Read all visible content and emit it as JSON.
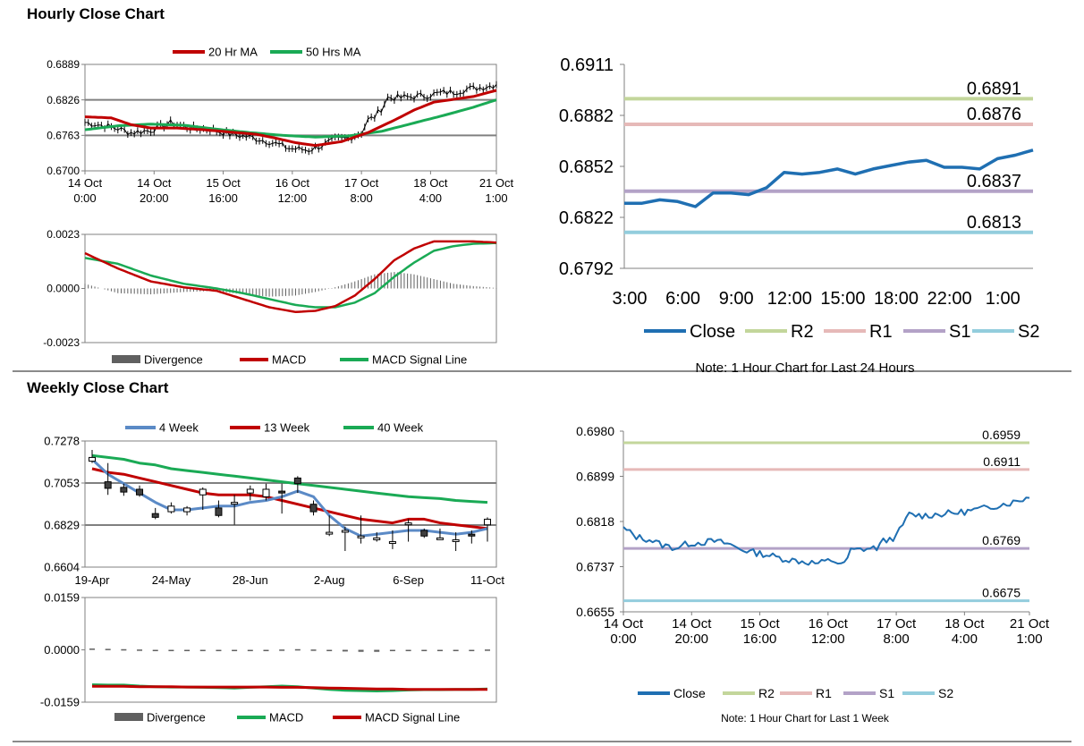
{
  "sections": [
    {
      "title": "Hourly Close Chart"
    },
    {
      "title": "Weekly Close Chart"
    }
  ],
  "colors": {
    "ma20": "#c00000",
    "ma50": "#1aaa55",
    "close_black": "#000000",
    "macd": "#c00000",
    "signal": "#1aaa55",
    "divergence": "#606060",
    "close_blue": "#1f6fb2",
    "r2": "#c3d69b",
    "r1": "#e6b9b8",
    "s1": "#b3a2c7",
    "s2": "#93cddd",
    "w4": "#5b8ac6",
    "w13": "#c00000",
    "w40": "#1aaa55",
    "gridline": "#808080"
  },
  "chart_data": [
    {
      "id": "hourly_price",
      "type": "line",
      "y_ticks": [
        "0.6889",
        "0.6826",
        "0.6763",
        "0.6700"
      ],
      "ylim": [
        0.67,
        0.6889
      ],
      "x_tick_labels": [
        [
          "14 Oct",
          "0:00"
        ],
        [
          "14 Oct",
          "20:00"
        ],
        [
          "15 Oct",
          "16:00"
        ],
        [
          "16 Oct",
          "12:00"
        ],
        [
          "17 Oct",
          "8:00"
        ],
        [
          "18 Oct",
          "4:00"
        ],
        [
          "21 Oct",
          "1:00"
        ]
      ],
      "legend": [
        "20 Hr MA",
        "50 Hrs MA"
      ],
      "x_count": 126,
      "close_keypoints": [
        [
          0,
          0.6786
        ],
        [
          6,
          0.678
        ],
        [
          10,
          0.6775
        ],
        [
          14,
          0.6768
        ],
        [
          20,
          0.6772
        ],
        [
          26,
          0.6785
        ],
        [
          32,
          0.6776
        ],
        [
          38,
          0.6774
        ],
        [
          44,
          0.6765
        ],
        [
          50,
          0.676
        ],
        [
          56,
          0.6752
        ],
        [
          62,
          0.674
        ],
        [
          68,
          0.6737
        ],
        [
          72,
          0.6745
        ],
        [
          76,
          0.6755
        ],
        [
          80,
          0.6758
        ],
        [
          84,
          0.6768
        ],
        [
          86,
          0.679
        ],
        [
          88,
          0.6796
        ],
        [
          90,
          0.681
        ],
        [
          92,
          0.683
        ],
        [
          96,
          0.683
        ],
        [
          100,
          0.6832
        ],
        [
          104,
          0.6834
        ],
        [
          108,
          0.6838
        ],
        [
          112,
          0.684
        ],
        [
          116,
          0.6845
        ],
        [
          120,
          0.6848
        ],
        [
          124,
          0.6852
        ],
        [
          125,
          0.6855
        ]
      ],
      "ma20_keypoints": [
        [
          0,
          0.6796
        ],
        [
          8,
          0.6794
        ],
        [
          14,
          0.6782
        ],
        [
          20,
          0.6776
        ],
        [
          28,
          0.6776
        ],
        [
          36,
          0.6773
        ],
        [
          44,
          0.6769
        ],
        [
          52,
          0.6765
        ],
        [
          58,
          0.6758
        ],
        [
          64,
          0.675
        ],
        [
          70,
          0.6745
        ],
        [
          78,
          0.6752
        ],
        [
          86,
          0.6768
        ],
        [
          94,
          0.679
        ],
        [
          100,
          0.6808
        ],
        [
          106,
          0.6822
        ],
        [
          112,
          0.6827
        ],
        [
          118,
          0.6832
        ],
        [
          125,
          0.6843
        ]
      ],
      "ma50_keypoints": [
        [
          0,
          0.6773
        ],
        [
          10,
          0.678
        ],
        [
          20,
          0.6783
        ],
        [
          30,
          0.6781
        ],
        [
          40,
          0.6774
        ],
        [
          50,
          0.6768
        ],
        [
          60,
          0.6763
        ],
        [
          70,
          0.676
        ],
        [
          80,
          0.6762
        ],
        [
          90,
          0.677
        ],
        [
          100,
          0.6785
        ],
        [
          110,
          0.68
        ],
        [
          118,
          0.6813
        ],
        [
          125,
          0.6826
        ]
      ]
    },
    {
      "id": "hourly_macd",
      "type": "line",
      "y_ticks": [
        "0.0023",
        "0.0000",
        "-0.0023"
      ],
      "ylim": [
        -0.0023,
        0.0023
      ],
      "legend": [
        "Divergence",
        "MACD",
        "MACD Signal Line"
      ],
      "x_count": 126,
      "macd_keypoints": [
        [
          0,
          0.0015
        ],
        [
          10,
          0.00085
        ],
        [
          20,
          0.0003
        ],
        [
          30,
          5e-05
        ],
        [
          40,
          -0.0001
        ],
        [
          48,
          -0.00045
        ],
        [
          56,
          -0.0008
        ],
        [
          64,
          -0.001
        ],
        [
          70,
          -0.00095
        ],
        [
          76,
          -0.00075
        ],
        [
          82,
          -0.0003
        ],
        [
          88,
          0.0004
        ],
        [
          94,
          0.0012
        ],
        [
          100,
          0.0017
        ],
        [
          106,
          0.002
        ],
        [
          112,
          0.002
        ],
        [
          118,
          0.002
        ],
        [
          125,
          0.00195
        ]
      ],
      "signal_keypoints": [
        [
          0,
          0.0013
        ],
        [
          10,
          0.00105
        ],
        [
          20,
          0.00055
        ],
        [
          30,
          0.0002
        ],
        [
          40,
          0.0
        ],
        [
          48,
          -0.0002
        ],
        [
          56,
          -0.00045
        ],
        [
          64,
          -0.0007
        ],
        [
          70,
          -0.0008
        ],
        [
          76,
          -0.0008
        ],
        [
          82,
          -0.0006
        ],
        [
          88,
          -0.0002
        ],
        [
          94,
          0.0005
        ],
        [
          100,
          0.0011
        ],
        [
          106,
          0.0016
        ],
        [
          112,
          0.0018
        ],
        [
          118,
          0.0019
        ],
        [
          125,
          0.00193
        ]
      ]
    },
    {
      "id": "hourly_24h",
      "type": "line",
      "y_ticks": [
        "0.6911",
        "0.6882",
        "0.6852",
        "0.6822",
        "0.6792"
      ],
      "ylim": [
        0.6792,
        0.6911
      ],
      "x_tick_labels": [
        "3:00",
        "6:00",
        "9:00",
        "12:00",
        "15:00",
        "18:00",
        "22:00",
        "1:00"
      ],
      "close_values": [
        0.683,
        0.683,
        0.6832,
        0.6831,
        0.6828,
        0.6836,
        0.6836,
        0.6835,
        0.6839,
        0.6848,
        0.6847,
        0.6848,
        0.685,
        0.6847,
        0.685,
        0.6852,
        0.6854,
        0.6855,
        0.6851,
        0.6851,
        0.685,
        0.6856,
        0.6858,
        0.6861
      ],
      "levels": [
        {
          "label": "R2",
          "value": 0.6891,
          "text": "0.6891"
        },
        {
          "label": "R1",
          "value": 0.6876,
          "text": "0.6876"
        },
        {
          "label": "S1",
          "value": 0.6837,
          "text": "0.6837"
        },
        {
          "label": "S2",
          "value": 0.6813,
          "text": "0.6813"
        }
      ],
      "legend": [
        "Close",
        "R2",
        "R1",
        "S1",
        "S2"
      ],
      "note": "Note: 1 Hour Chart for Last 24 Hours"
    },
    {
      "id": "weekly_price",
      "type": "line",
      "y_ticks": [
        "0.7278",
        "0.7053",
        "0.6829",
        "0.6604"
      ],
      "ylim": [
        0.6604,
        0.7278
      ],
      "x_tick_labels": [
        "19-Apr",
        "24-May",
        "28-Jun",
        "2-Aug",
        "6-Sep",
        "11-Oct"
      ],
      "legend": [
        "4 Week",
        "13 Week",
        "40 Week"
      ],
      "candles": [
        {
          "o": 0.717,
          "c": 0.719,
          "h": 0.723,
          "l": 0.716
        },
        {
          "o": 0.706,
          "c": 0.7025,
          "h": 0.716,
          "l": 0.699
        },
        {
          "o": 0.703,
          "c": 0.7005,
          "h": 0.705,
          "l": 0.6985
        },
        {
          "o": 0.702,
          "c": 0.699,
          "h": 0.704,
          "l": 0.698
        },
        {
          "o": 0.689,
          "c": 0.687,
          "h": 0.692,
          "l": 0.686
        },
        {
          "o": 0.69,
          "c": 0.693,
          "h": 0.695,
          "l": 0.689
        },
        {
          "o": 0.69,
          "c": 0.692,
          "h": 0.693,
          "l": 0.688
        },
        {
          "o": 0.699,
          "c": 0.702,
          "h": 0.703,
          "l": 0.691
        },
        {
          "o": 0.692,
          "c": 0.688,
          "h": 0.696,
          "l": 0.687
        },
        {
          "o": 0.695,
          "c": 0.695,
          "h": 0.699,
          "l": 0.683
        },
        {
          "o": 0.7,
          "c": 0.702,
          "h": 0.704,
          "l": 0.696
        },
        {
          "o": 0.698,
          "c": 0.702,
          "h": 0.705,
          "l": 0.696
        },
        {
          "o": 0.701,
          "c": 0.7,
          "h": 0.705,
          "l": 0.689
        },
        {
          "o": 0.708,
          "c": 0.705,
          "h": 0.709,
          "l": 0.7
        },
        {
          "o": 0.694,
          "c": 0.69,
          "h": 0.696,
          "l": 0.688
        },
        {
          "o": 0.679,
          "c": 0.679,
          "h": 0.688,
          "l": 0.677
        },
        {
          "o": 0.68,
          "c": 0.68,
          "h": 0.682,
          "l": 0.669
        },
        {
          "o": 0.677,
          "c": 0.677,
          "h": 0.688,
          "l": 0.673
        },
        {
          "o": 0.675,
          "c": 0.676,
          "h": 0.679,
          "l": 0.674
        },
        {
          "o": 0.674,
          "c": 0.674,
          "h": 0.68,
          "l": 0.67
        },
        {
          "o": 0.684,
          "c": 0.684,
          "h": 0.686,
          "l": 0.674
        },
        {
          "o": 0.68,
          "c": 0.677,
          "h": 0.681,
          "l": 0.676
        },
        {
          "o": 0.676,
          "c": 0.676,
          "h": 0.681,
          "l": 0.675
        },
        {
          "o": 0.675,
          "c": 0.675,
          "h": 0.679,
          "l": 0.669
        },
        {
          "o": 0.678,
          "c": 0.677,
          "h": 0.68,
          "l": 0.673
        },
        {
          "o": 0.683,
          "c": 0.686,
          "h": 0.687,
          "l": 0.674
        }
      ],
      "w4_values": [
        0.718,
        0.71,
        0.705,
        0.7,
        0.695,
        0.691,
        0.691,
        0.692,
        0.693,
        0.693,
        0.695,
        0.696,
        0.698,
        0.701,
        0.698,
        0.688,
        0.681,
        0.677,
        0.678,
        0.679,
        0.68,
        0.68,
        0.679,
        0.678,
        0.679,
        0.681
      ],
      "w13_values": [
        0.713,
        0.711,
        0.71,
        0.708,
        0.706,
        0.704,
        0.702,
        0.7,
        0.699,
        0.699,
        0.699,
        0.698,
        0.696,
        0.694,
        0.692,
        0.69,
        0.688,
        0.686,
        0.685,
        0.684,
        0.686,
        0.686,
        0.684,
        0.683,
        0.682,
        0.681
      ],
      "w40_values": [
        0.72,
        0.719,
        0.718,
        0.716,
        0.715,
        0.713,
        0.712,
        0.711,
        0.71,
        0.709,
        0.708,
        0.707,
        0.706,
        0.705,
        0.704,
        0.703,
        0.702,
        0.701,
        0.7,
        0.699,
        0.698,
        0.6975,
        0.697,
        0.696,
        0.6955,
        0.695
      ]
    },
    {
      "id": "weekly_macd",
      "type": "line",
      "y_ticks": [
        "0.0159",
        "0.0000",
        "-0.0159"
      ],
      "ylim": [
        -0.0159,
        0.0159
      ],
      "legend": [
        "Divergence",
        "MACD",
        "MACD Signal Line"
      ],
      "x_count": 26,
      "divergence_values": [
        0.0004,
        0.0003,
        0.0002,
        0.0001,
        0.0,
        -0.0001,
        -0.0002,
        -0.0002,
        -0.0003,
        -0.0003,
        -0.0002,
        -0.0001,
        0.0001,
        0.0002,
        0.0001,
        -0.0003,
        -0.0005,
        -0.0006,
        -0.0006,
        -0.0004,
        -0.0003,
        -0.0002,
        -0.0002,
        -0.0001,
        0.0,
        0.0001
      ],
      "macd_values": [
        -0.0106,
        -0.0107,
        -0.0107,
        -0.011,
        -0.0112,
        -0.0113,
        -0.0113,
        -0.0114,
        -0.0115,
        -0.0116,
        -0.0114,
        -0.0112,
        -0.011,
        -0.0112,
        -0.0116,
        -0.012,
        -0.0123,
        -0.0124,
        -0.0125,
        -0.0124,
        -0.0122,
        -0.0121,
        -0.0121,
        -0.012,
        -0.012,
        -0.0119
      ],
      "signal_values": [
        -0.0111,
        -0.0111,
        -0.0111,
        -0.0112,
        -0.0112,
        -0.0112,
        -0.0113,
        -0.0113,
        -0.0113,
        -0.0113,
        -0.0113,
        -0.0113,
        -0.0114,
        -0.0114,
        -0.0115,
        -0.0116,
        -0.0117,
        -0.0118,
        -0.0119,
        -0.0119,
        -0.012,
        -0.012,
        -0.012,
        -0.012,
        -0.012,
        -0.012
      ]
    },
    {
      "id": "weekly_1w",
      "type": "line",
      "y_ticks": [
        "0.6980",
        "0.6899",
        "0.6818",
        "0.6737",
        "0.6655"
      ],
      "ylim": [
        0.6655,
        0.698
      ],
      "x_tick_labels": [
        [
          "14 Oct",
          "0:00"
        ],
        [
          "14 Oct",
          "20:00"
        ],
        [
          "15 Oct",
          "16:00"
        ],
        [
          "16 Oct",
          "12:00"
        ],
        [
          "17 Oct",
          "8:00"
        ],
        [
          "18 Oct",
          "4:00"
        ],
        [
          "21 Oct",
          "1:00"
        ]
      ],
      "x_count": 126,
      "close_keypoints": [
        [
          0,
          0.6805
        ],
        [
          4,
          0.679
        ],
        [
          8,
          0.6785
        ],
        [
          12,
          0.6775
        ],
        [
          16,
          0.677
        ],
        [
          20,
          0.6778
        ],
        [
          24,
          0.678
        ],
        [
          28,
          0.6782
        ],
        [
          32,
          0.6778
        ],
        [
          36,
          0.6768
        ],
        [
          40,
          0.6762
        ],
        [
          44,
          0.6758
        ],
        [
          48,
          0.6752
        ],
        [
          52,
          0.6748
        ],
        [
          56,
          0.6745
        ],
        [
          60,
          0.6742
        ],
        [
          64,
          0.6748
        ],
        [
          68,
          0.674
        ],
        [
          70,
          0.6765
        ],
        [
          74,
          0.6768
        ],
        [
          78,
          0.677
        ],
        [
          80,
          0.6782
        ],
        [
          84,
          0.679
        ],
        [
          86,
          0.6812
        ],
        [
          88,
          0.683
        ],
        [
          92,
          0.6828
        ],
        [
          96,
          0.683
        ],
        [
          100,
          0.6832
        ],
        [
          104,
          0.6834
        ],
        [
          108,
          0.6838
        ],
        [
          112,
          0.6842
        ],
        [
          116,
          0.6848
        ],
        [
          120,
          0.6852
        ],
        [
          125,
          0.6862
        ]
      ],
      "levels": [
        {
          "label": "R2",
          "value": 0.6959,
          "text": "0.6959"
        },
        {
          "label": "R1",
          "value": 0.6911,
          "text": "0.6911"
        },
        {
          "label": "S1",
          "value": 0.6769,
          "text": "0.6769"
        },
        {
          "label": "S2",
          "value": 0.6675,
          "text": "0.6675"
        }
      ],
      "legend": [
        "Close",
        "R2",
        "R1",
        "S1",
        "S2"
      ],
      "note": "Note: 1 Hour Chart for Last 1 Week"
    }
  ]
}
